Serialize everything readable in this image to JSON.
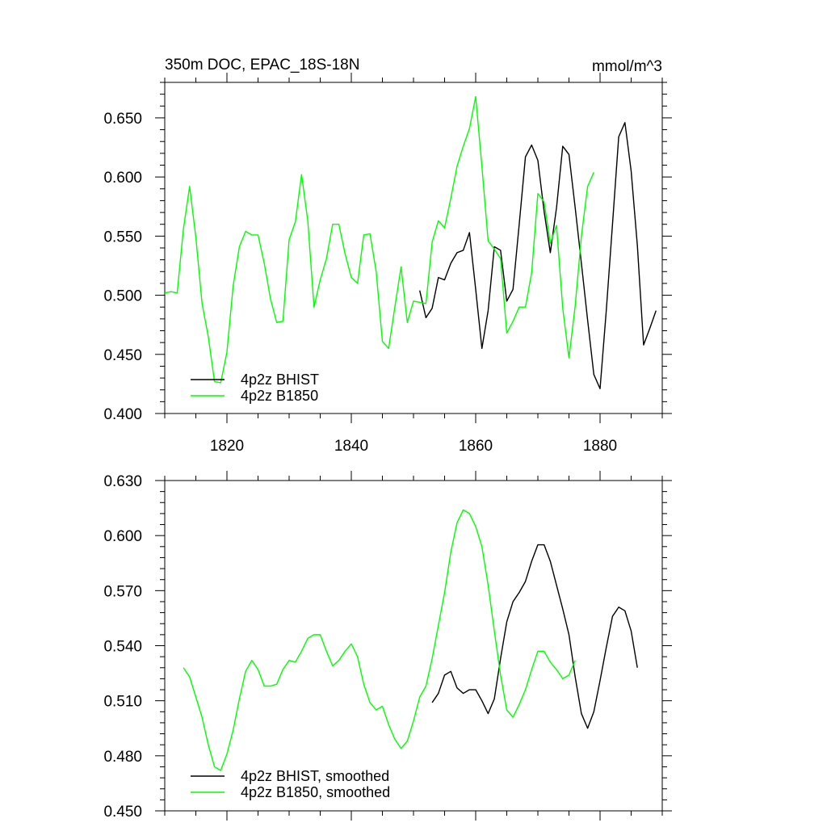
{
  "chart_data": [
    {
      "type": "line",
      "title": "350m DOC, EPAC_18S-18N",
      "units_label": "mmol/m^3",
      "xlabel": "",
      "ylabel": "",
      "xlim": [
        1810,
        1890
      ],
      "ylim": [
        0.4,
        0.68
      ],
      "x_ticks": [
        1820,
        1840,
        1860,
        1880
      ],
      "x_tick_labels": [
        "1820",
        "1840",
        "1860",
        "1880"
      ],
      "y_ticks": [
        0.4,
        0.45,
        0.5,
        0.55,
        0.6,
        0.65
      ],
      "y_tick_labels": [
        "0.400",
        "0.450",
        "0.500",
        "0.550",
        "0.600",
        "0.650"
      ],
      "legend_position": "bottom-left",
      "grid": false,
      "series": [
        {
          "name": "4p2z BHIST",
          "color": "#000000",
          "x": [
            1851,
            1852,
            1853,
            1854,
            1855,
            1856,
            1857,
            1858,
            1859,
            1860,
            1861,
            1862,
            1863,
            1864,
            1865,
            1866,
            1867,
            1868,
            1869,
            1870,
            1871,
            1872,
            1873,
            1874,
            1875,
            1876,
            1877,
            1878,
            1879,
            1880,
            1881,
            1882,
            1883,
            1884,
            1885,
            1886,
            1887,
            1888,
            1889
          ],
          "y": [
            0.504,
            0.481,
            0.489,
            0.515,
            0.513,
            0.527,
            0.536,
            0.538,
            0.553,
            0.505,
            0.455,
            0.487,
            0.541,
            0.538,
            0.495,
            0.505,
            0.56,
            0.617,
            0.627,
            0.614,
            0.571,
            0.536,
            0.574,
            0.626,
            0.619,
            0.574,
            0.527,
            0.479,
            0.433,
            0.421,
            0.487,
            0.56,
            0.634,
            0.646,
            0.605,
            0.542,
            0.458,
            0.472,
            0.487
          ]
        },
        {
          "name": "4p2z B1850",
          "color": "#00ff00",
          "x": [
            1810,
            1811,
            1812,
            1813,
            1814,
            1815,
            1816,
            1817,
            1818,
            1819,
            1820,
            1821,
            1822,
            1823,
            1824,
            1825,
            1826,
            1827,
            1828,
            1829,
            1830,
            1831,
            1832,
            1833,
            1834,
            1835,
            1836,
            1837,
            1838,
            1839,
            1840,
            1841,
            1842,
            1843,
            1844,
            1845,
            1846,
            1847,
            1848,
            1849,
            1850,
            1851,
            1852,
            1853,
            1854,
            1855,
            1856,
            1857,
            1858,
            1859,
            1860,
            1861,
            1862,
            1863,
            1864,
            1865,
            1866,
            1867,
            1868,
            1869,
            1870,
            1871,
            1872,
            1873,
            1874,
            1875,
            1876,
            1877,
            1878,
            1879
          ],
          "y": [
            0.502,
            0.503,
            0.502,
            0.556,
            0.592,
            0.549,
            0.493,
            0.465,
            0.427,
            0.426,
            0.452,
            0.508,
            0.541,
            0.554,
            0.551,
            0.551,
            0.527,
            0.497,
            0.477,
            0.478,
            0.547,
            0.562,
            0.602,
            0.563,
            0.49,
            0.513,
            0.531,
            0.56,
            0.56,
            0.535,
            0.515,
            0.51,
            0.551,
            0.552,
            0.52,
            0.461,
            0.455,
            0.49,
            0.524,
            0.477,
            0.495,
            0.494,
            0.493,
            0.545,
            0.563,
            0.557,
            0.582,
            0.609,
            0.626,
            0.641,
            0.668,
            0.609,
            0.546,
            0.539,
            0.531,
            0.468,
            0.478,
            0.49,
            0.49,
            0.519,
            0.586,
            0.579,
            0.544,
            0.559,
            0.489,
            0.447,
            0.491,
            0.55,
            0.592,
            0.604
          ]
        }
      ]
    },
    {
      "type": "line",
      "title": "",
      "xlabel": "",
      "ylabel": "",
      "xlim": [
        1810,
        1890
      ],
      "ylim": [
        0.45,
        0.63
      ],
      "x_ticks": [
        1820,
        1840,
        1860,
        1880
      ],
      "x_tick_labels": [],
      "y_ticks": [
        0.45,
        0.48,
        0.51,
        0.54,
        0.57,
        0.6,
        0.63
      ],
      "y_tick_labels": [
        "0.450",
        "0.480",
        "0.510",
        "0.540",
        "0.570",
        "0.600",
        "0.630"
      ],
      "legend_position": "bottom-left",
      "grid": false,
      "series": [
        {
          "name": "4p2z BHIST, smoothed",
          "color": "#000000",
          "x": [
            1853,
            1854,
            1855,
            1856,
            1857,
            1858,
            1859,
            1860,
            1861,
            1862,
            1863,
            1864,
            1865,
            1866,
            1867,
            1868,
            1869,
            1870,
            1871,
            1872,
            1873,
            1874,
            1875,
            1876,
            1877,
            1878,
            1879,
            1880,
            1881,
            1882,
            1883,
            1884,
            1885,
            1886
          ],
          "y": [
            0.509,
            0.514,
            0.524,
            0.526,
            0.517,
            0.514,
            0.516,
            0.516,
            0.51,
            0.503,
            0.511,
            0.533,
            0.553,
            0.564,
            0.569,
            0.575,
            0.586,
            0.595,
            0.595,
            0.586,
            0.573,
            0.56,
            0.546,
            0.523,
            0.503,
            0.495,
            0.504,
            0.521,
            0.539,
            0.556,
            0.561,
            0.559,
            0.548,
            0.528
          ]
        },
        {
          "name": "4p2z B1850, smoothed",
          "color": "#00ff00",
          "x": [
            1813,
            1814,
            1815,
            1816,
            1817,
            1818,
            1819,
            1820,
            1821,
            1822,
            1823,
            1824,
            1825,
            1826,
            1827,
            1828,
            1829,
            1830,
            1831,
            1832,
            1833,
            1834,
            1835,
            1836,
            1837,
            1838,
            1839,
            1840,
            1841,
            1842,
            1843,
            1844,
            1845,
            1846,
            1847,
            1848,
            1849,
            1850,
            1851,
            1852,
            1853,
            1854,
            1855,
            1856,
            1857,
            1858,
            1859,
            1860,
            1861,
            1862,
            1863,
            1864,
            1865,
            1866,
            1867,
            1868,
            1869,
            1870,
            1871,
            1872,
            1873,
            1874,
            1875,
            1876
          ],
          "y": [
            0.528,
            0.523,
            0.512,
            0.501,
            0.486,
            0.474,
            0.472,
            0.481,
            0.494,
            0.511,
            0.526,
            0.532,
            0.527,
            0.518,
            0.518,
            0.519,
            0.527,
            0.532,
            0.531,
            0.537,
            0.544,
            0.546,
            0.546,
            0.537,
            0.529,
            0.532,
            0.537,
            0.541,
            0.534,
            0.519,
            0.509,
            0.505,
            0.507,
            0.497,
            0.489,
            0.484,
            0.488,
            0.499,
            0.512,
            0.518,
            0.533,
            0.551,
            0.569,
            0.591,
            0.607,
            0.614,
            0.612,
            0.605,
            0.594,
            0.573,
            0.548,
            0.524,
            0.505,
            0.501,
            0.508,
            0.516,
            0.527,
            0.537,
            0.537,
            0.531,
            0.527,
            0.522,
            0.524,
            0.532
          ]
        }
      ]
    }
  ]
}
